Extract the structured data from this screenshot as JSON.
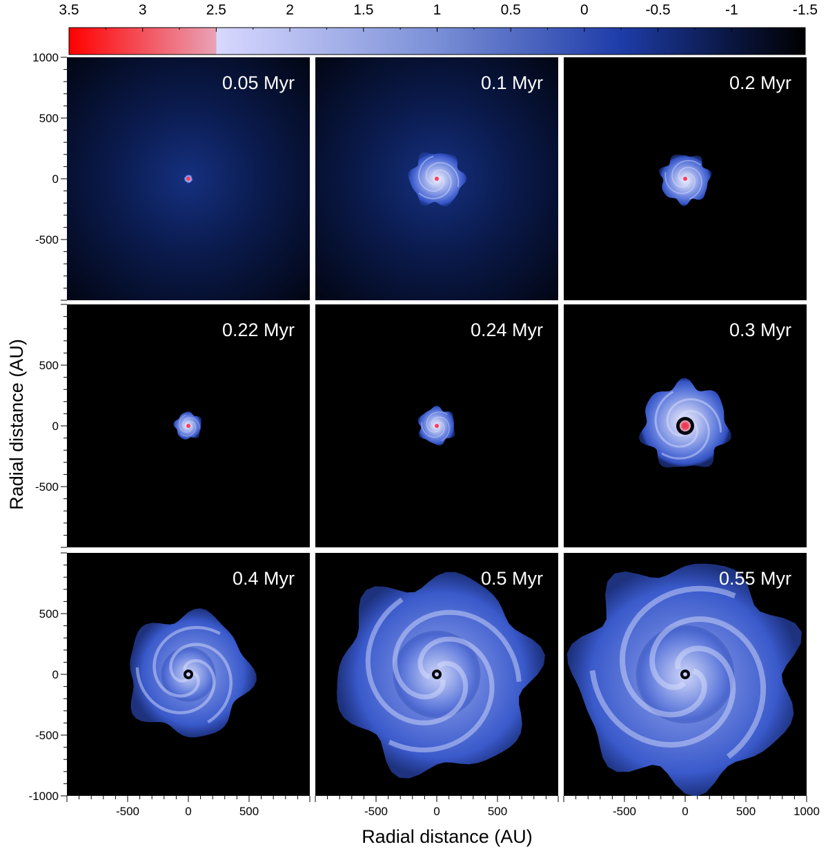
{
  "chart_data": {
    "type": "heatmap",
    "title": "",
    "xlabel": "Radial distance (AU)",
    "ylabel": "Radial distance (AU)",
    "xlim": [
      -1000,
      1000
    ],
    "ylim": [
      -1000,
      1000
    ],
    "x_ticks_bottom_left": [
      -500,
      0,
      500
    ],
    "x_ticks_bottom_middle": [
      -500,
      0,
      500
    ],
    "x_ticks_bottom_right": [
      -500,
      0,
      500,
      1000
    ],
    "y_ticks_top_row": [
      1000,
      500,
      0,
      -500
    ],
    "y_ticks_middle_row": [
      500,
      0,
      -500
    ],
    "y_ticks_bottom_row": [
      500,
      0,
      -500,
      -1000
    ],
    "colorbar": {
      "ticks": [
        "3.5",
        "3",
        "2.5",
        "2",
        "1.5",
        "1",
        "0.5",
        "0",
        "-0.5",
        "-1",
        "-1.5"
      ],
      "range": [
        3.5,
        -1.5
      ],
      "colors": [
        "#ff0000",
        "#d7d7ff",
        "#1c3aa8",
        "#000000"
      ]
    },
    "panels": [
      {
        "time": "0.05 Myr",
        "disk_radius_au": 35,
        "core": "small",
        "background": "glow"
      },
      {
        "time": "0.1 Myr",
        "disk_radius_au": 220,
        "core": "small",
        "background": "glow"
      },
      {
        "time": "0.2 Myr",
        "disk_radius_au": 200,
        "core": "small",
        "background": "dark"
      },
      {
        "time": "0.22 Myr",
        "disk_radius_au": 110,
        "core": "small",
        "background": "dark"
      },
      {
        "time": "0.24 Myr",
        "disk_radius_au": 150,
        "core": "small",
        "background": "dark"
      },
      {
        "time": "0.3 Myr",
        "disk_radius_au": 350,
        "core": "large",
        "background": "dark"
      },
      {
        "time": "0.4 Myr",
        "disk_radius_au": 500,
        "core": "hole",
        "background": "dark"
      },
      {
        "time": "0.5 Myr",
        "disk_radius_au": 800,
        "core": "hole",
        "background": "dark"
      },
      {
        "time": "0.55 Myr",
        "disk_radius_au": 900,
        "core": "hole",
        "background": "dark"
      }
    ]
  }
}
